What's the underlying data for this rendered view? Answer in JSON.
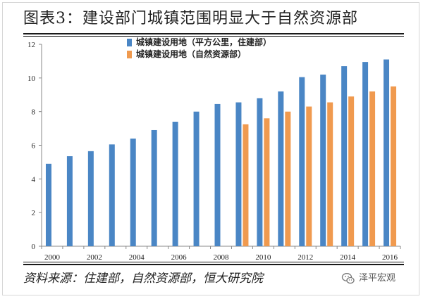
{
  "title": "图表3：建设部门城镇范围明显大于自然资源部",
  "source": "资料来源：住建部，自然资源部，恒大研究院",
  "watermark": {
    "text": "泽平宏观",
    "icon": "wechat-icon"
  },
  "colors": {
    "series1": "#4a86c5",
    "series2": "#f09a4f"
  },
  "chart_data": {
    "type": "bar",
    "categories": [
      "2000",
      "2001",
      "2002",
      "2003",
      "2004",
      "2005",
      "2006",
      "2007",
      "2008",
      "2009",
      "2010",
      "2011",
      "2012",
      "2013",
      "2014",
      "2015",
      "2016"
    ],
    "xtick_labels": [
      "2000",
      "",
      "2002",
      "",
      "2004",
      "",
      "2006",
      "",
      "2008",
      "",
      "2010",
      "",
      "2012",
      "",
      "2014",
      "",
      "2016"
    ],
    "series": [
      {
        "name": "城镇建设用地（平方公里，住建部）",
        "values": [
          4.9,
          5.35,
          5.65,
          6.05,
          6.4,
          6.9,
          7.4,
          8.0,
          8.45,
          8.55,
          8.8,
          9.2,
          10.05,
          10.2,
          10.7,
          10.95,
          11.1
        ]
      },
      {
        "name": "城镇建设用地（自然资源部）",
        "values": [
          null,
          null,
          null,
          null,
          null,
          null,
          null,
          null,
          null,
          7.25,
          7.6,
          8.0,
          8.3,
          8.55,
          8.9,
          9.2,
          9.5
        ]
      }
    ],
    "ylim": [
      0,
      12
    ],
    "yticks": [
      0,
      2,
      4,
      6,
      8,
      10,
      12
    ],
    "grid": false,
    "legend": "top-center"
  }
}
